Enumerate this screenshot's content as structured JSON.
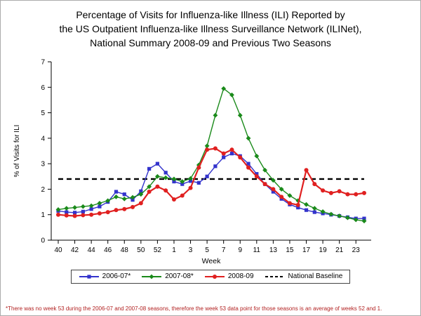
{
  "title": {
    "line1": "Percentage of Visits for Influenza-like Illness (ILI) Reported by",
    "line2": "the US Outpatient Influenza-like Illness Surveillance Network (ILINet),",
    "line3": "National Summary 2008-09 and Previous Two Seasons"
  },
  "footnote": "*There was no week 53 during the 2006-07 and 2007-08 seasons, therefore the week 53 data point for those seasons is an average of weeks 52 and 1.",
  "colors": {
    "series_2006_07": "#3333CC",
    "series_2007_08": "#1A8A1A",
    "series_2008_09": "#E02020",
    "baseline": "#000000",
    "footnote_text": "#B22222"
  },
  "chart_data": {
    "type": "line",
    "title": "Percentage of Visits for Influenza-like Illness (ILI) Reported by the US Outpatient Influenza-like Illness Surveillance Network (ILINet), National Summary 2008-09 and Previous Two Seasons",
    "xlabel": "Week",
    "ylabel": "% of Visits for ILI",
    "ylim": [
      0,
      7
    ],
    "y_ticks": [
      0,
      1,
      2,
      3,
      4,
      5,
      6,
      7
    ],
    "grid": false,
    "legend_position": "bottom",
    "categories": [
      "40",
      "41",
      "42",
      "43",
      "44",
      "45",
      "46",
      "47",
      "48",
      "49",
      "50",
      "51",
      "52",
      "53",
      "1",
      "2",
      "3",
      "4",
      "5",
      "6",
      "7",
      "8",
      "9",
      "10",
      "11",
      "12",
      "13",
      "14",
      "15",
      "16",
      "17",
      "18",
      "19",
      "20",
      "21",
      "22",
      "23",
      "24"
    ],
    "x_tick_labels": [
      "40",
      "42",
      "44",
      "46",
      "48",
      "50",
      "52",
      "1",
      "3",
      "5",
      "7",
      "9",
      "11",
      "13",
      "15",
      "17",
      "19",
      "21",
      "23"
    ],
    "series": [
      {
        "name": "2006-07*",
        "color": "#3333CC",
        "marker": "square",
        "line_width": 1.4,
        "values": [
          1.15,
          1.1,
          1.08,
          1.12,
          1.22,
          1.32,
          1.5,
          1.9,
          1.8,
          1.58,
          1.92,
          2.8,
          3.0,
          2.65,
          2.3,
          2.2,
          2.32,
          2.25,
          2.5,
          2.9,
          3.25,
          3.4,
          3.3,
          3.0,
          2.6,
          2.2,
          1.9,
          1.62,
          1.4,
          1.28,
          1.18,
          1.1,
          1.05,
          1.0,
          0.95,
          0.9,
          0.85,
          0.85
        ]
      },
      {
        "name": "2007-08*",
        "color": "#1A8A1A",
        "marker": "diamond",
        "line_width": 1.4,
        "values": [
          1.2,
          1.25,
          1.28,
          1.32,
          1.35,
          1.45,
          1.55,
          1.7,
          1.62,
          1.68,
          1.8,
          2.1,
          2.5,
          2.45,
          2.4,
          2.3,
          2.42,
          2.95,
          3.7,
          4.9,
          5.95,
          5.7,
          4.9,
          4.0,
          3.3,
          2.75,
          2.35,
          2.0,
          1.75,
          1.55,
          1.4,
          1.25,
          1.12,
          1.02,
          0.95,
          0.88,
          0.8,
          0.75
        ]
      },
      {
        "name": "2008-09",
        "color": "#E02020",
        "marker": "circle",
        "line_width": 2.2,
        "values": [
          1.0,
          0.97,
          0.95,
          0.98,
          1.0,
          1.05,
          1.1,
          1.18,
          1.22,
          1.3,
          1.45,
          1.9,
          2.1,
          1.95,
          1.6,
          1.75,
          2.05,
          2.85,
          3.55,
          3.6,
          3.4,
          3.55,
          3.25,
          2.85,
          2.5,
          2.2,
          2.0,
          1.7,
          1.45,
          1.38,
          2.75,
          2.2,
          1.95,
          1.85,
          1.92,
          1.8,
          1.8,
          1.85
        ]
      },
      {
        "name": "National Baseline",
        "color": "#000000",
        "marker": "none",
        "type": "baseline",
        "style": "dashed",
        "value": 2.4
      }
    ]
  }
}
